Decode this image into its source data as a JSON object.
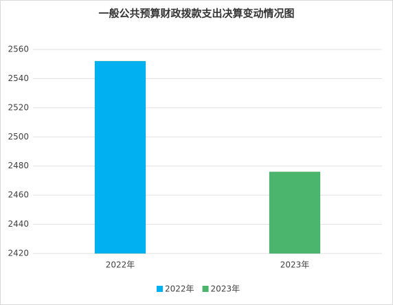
{
  "chart_data": {
    "type": "bar",
    "title": "一般公共预算财政拨款支出决算变动情况图",
    "categories": [
      "2022年",
      "2023年"
    ],
    "values": [
      2552,
      2476
    ],
    "colors": [
      "#00b0f0",
      "#4cb56d"
    ],
    "ylim": [
      2420,
      2560
    ],
    "yticks": [
      2420,
      2440,
      2460,
      2480,
      2500,
      2520,
      2540,
      2560
    ],
    "grid": true,
    "legend": "bottom"
  }
}
